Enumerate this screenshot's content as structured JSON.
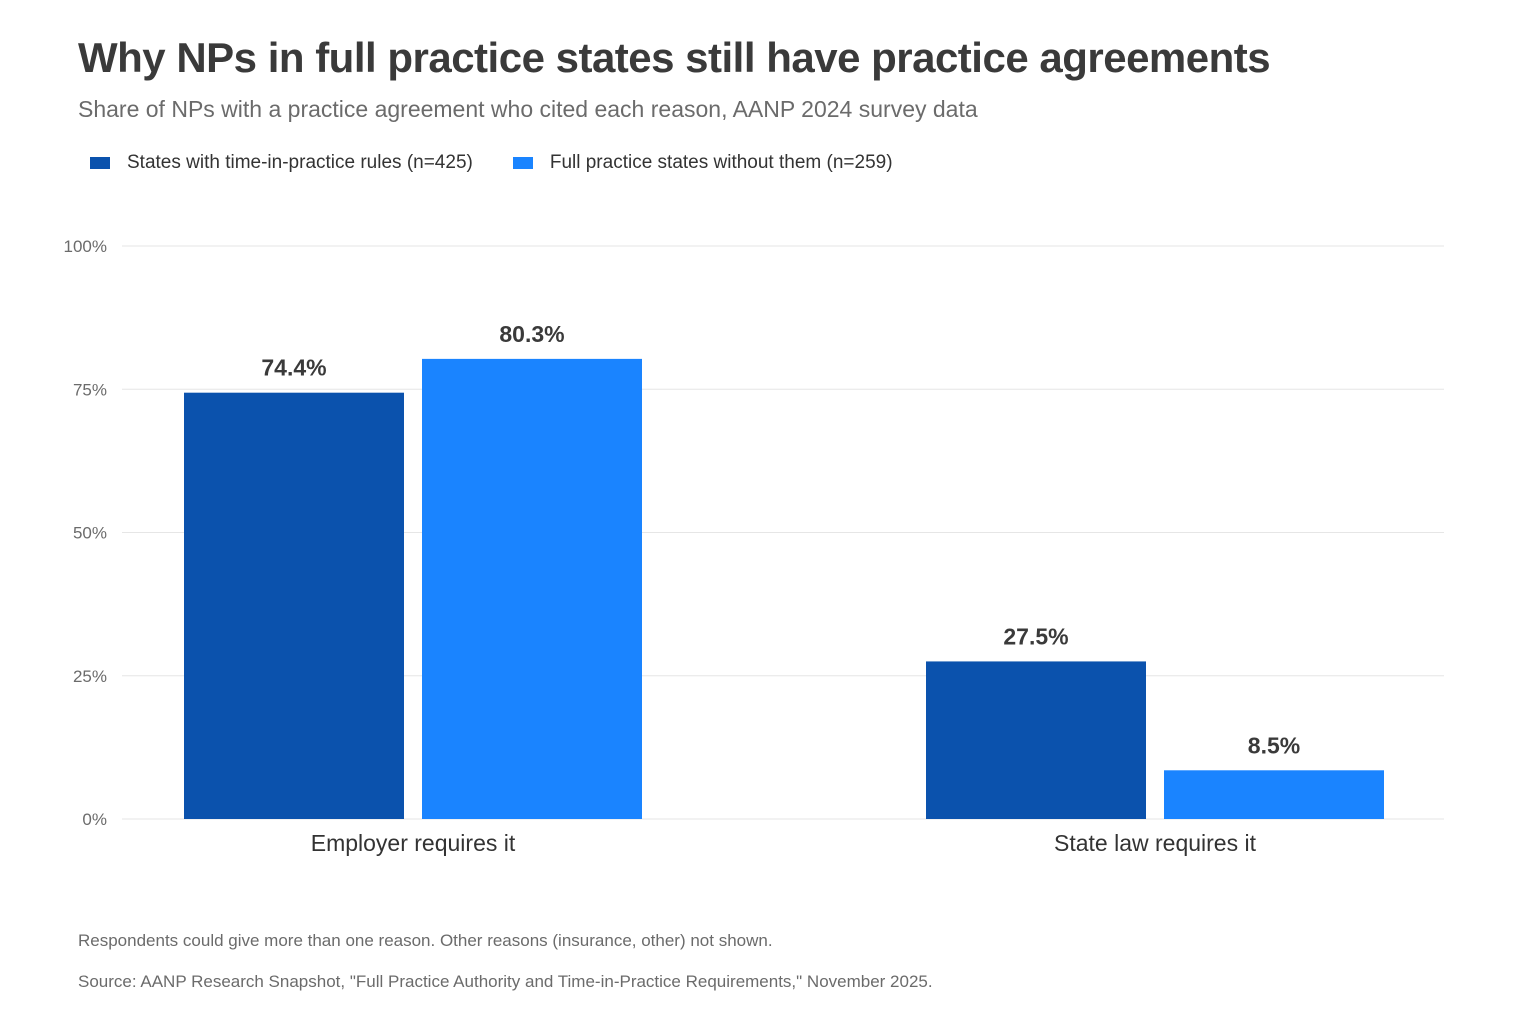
{
  "title": "Why NPs in full practice states still have practice agreements",
  "subtitle": "Share of NPs with a practice agreement who cited each reason, AANP 2024 survey data",
  "legend": [
    {
      "label": "States with time-in-practice rules (n=425)",
      "color": "#0b52ad"
    },
    {
      "label": "Full practice states without them (n=259)",
      "color": "#1a84ff"
    }
  ],
  "footnote": "Respondents could give more than one reason. Other reasons (insurance, other) not shown.",
  "source": "Source: AANP Research Snapshot, \"Full Practice Authority and Time-in-Practice Requirements,\" November 2025.",
  "chart_data": {
    "type": "bar",
    "categories": [
      "Employer requires it",
      "State law requires it"
    ],
    "series": [
      {
        "name": "States with time-in-practice rules (n=425)",
        "values": [
          74.4,
          27.5
        ],
        "labels": [
          "74.4%",
          "27.5%"
        ],
        "color": "#0b52ad"
      },
      {
        "name": "Full practice states without them (n=259)",
        "values": [
          80.3,
          8.5
        ],
        "labels": [
          "80.3%",
          "8.5%"
        ],
        "color": "#1a84ff"
      }
    ],
    "ylim": [
      0,
      100
    ],
    "yticks": [
      0,
      25,
      50,
      75,
      100
    ],
    "ytick_labels": [
      "0%",
      "25%",
      "50%",
      "75%",
      "100%"
    ],
    "grid": true,
    "legend_position": "top-left"
  }
}
